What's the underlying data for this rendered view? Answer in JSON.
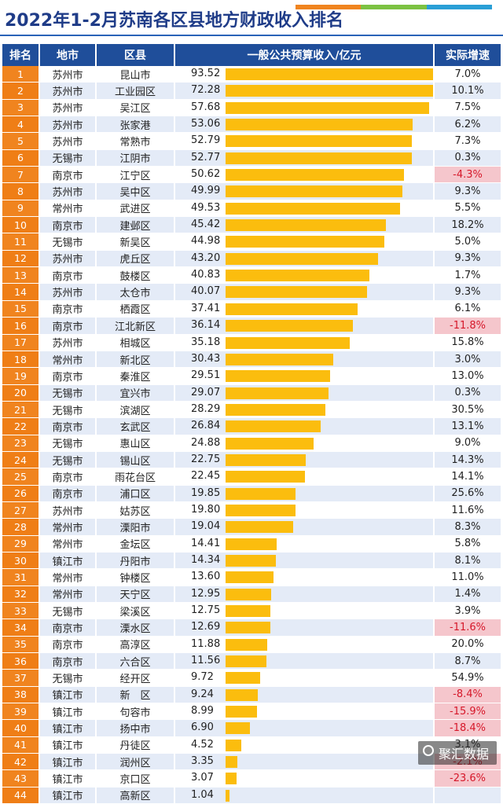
{
  "title": "2022年1-2月苏南各区县地方财政收入排名",
  "header": {
    "rank": "排名",
    "city": "地市",
    "district": "区县",
    "revenue": "一般公共预算收入/亿元",
    "growth": "实际增速"
  },
  "colors": {
    "accent_bars": [
      "#f0841f",
      "#7cc242",
      "#2a9fd6"
    ],
    "header_bg": "#1f4e9a",
    "rank_bg": "#f0841f",
    "bar": "#fbbd0e",
    "negative_bg": "#f5c6cc",
    "negative_text": "#d6182a"
  },
  "watermark": "聚汇数据",
  "chart_data": {
    "type": "bar",
    "title": "2022年1-2月苏南各区县地方财政收入排名",
    "value_label": "一般公共预算收入/亿元",
    "rows": [
      {
        "rank": "1",
        "city": "苏州市",
        "district": "昆山市",
        "value": "93.52",
        "growth": "7.0%"
      },
      {
        "rank": "2",
        "city": "苏州市",
        "district": "工业园区",
        "value": "72.28",
        "growth": "10.1%"
      },
      {
        "rank": "3",
        "city": "苏州市",
        "district": "吴江区",
        "value": "57.68",
        "growth": "7.5%"
      },
      {
        "rank": "4",
        "city": "苏州市",
        "district": "张家港",
        "value": "53.06",
        "growth": "6.2%"
      },
      {
        "rank": "5",
        "city": "苏州市",
        "district": "常熟市",
        "value": "52.79",
        "growth": "7.3%"
      },
      {
        "rank": "6",
        "city": "无锡市",
        "district": "江阴市",
        "value": "52.77",
        "growth": "0.3%"
      },
      {
        "rank": "7",
        "city": "南京市",
        "district": "江宁区",
        "value": "50.62",
        "growth": "-4.3%"
      },
      {
        "rank": "8",
        "city": "苏州市",
        "district": "吴中区",
        "value": "49.99",
        "growth": "9.3%"
      },
      {
        "rank": "9",
        "city": "常州市",
        "district": "武进区",
        "value": "49.53",
        "growth": "5.5%"
      },
      {
        "rank": "10",
        "city": "南京市",
        "district": "建邺区",
        "value": "45.42",
        "growth": "18.2%"
      },
      {
        "rank": "11",
        "city": "无锡市",
        "district": "新吴区",
        "value": "44.98",
        "growth": "5.0%"
      },
      {
        "rank": "12",
        "city": "苏州市",
        "district": "虎丘区",
        "value": "43.20",
        "growth": "9.3%"
      },
      {
        "rank": "13",
        "city": "南京市",
        "district": "鼓楼区",
        "value": "40.83",
        "growth": "1.7%"
      },
      {
        "rank": "14",
        "city": "苏州市",
        "district": "太仓市",
        "value": "40.07",
        "growth": "9.3%"
      },
      {
        "rank": "15",
        "city": "南京市",
        "district": "栖霞区",
        "value": "37.41",
        "growth": "6.1%"
      },
      {
        "rank": "16",
        "city": "南京市",
        "district": "江北新区",
        "value": "36.14",
        "growth": "-11.8%"
      },
      {
        "rank": "17",
        "city": "苏州市",
        "district": "相城区",
        "value": "35.18",
        "growth": "15.8%"
      },
      {
        "rank": "18",
        "city": "常州市",
        "district": "新北区",
        "value": "30.43",
        "growth": "3.0%"
      },
      {
        "rank": "19",
        "city": "南京市",
        "district": "秦淮区",
        "value": "29.51",
        "growth": "13.0%"
      },
      {
        "rank": "20",
        "city": "无锡市",
        "district": "宜兴市",
        "value": "29.07",
        "growth": "0.3%"
      },
      {
        "rank": "21",
        "city": "无锡市",
        "district": "滨湖区",
        "value": "28.29",
        "growth": "30.5%"
      },
      {
        "rank": "22",
        "city": "南京市",
        "district": "玄武区",
        "value": "26.84",
        "growth": "13.1%"
      },
      {
        "rank": "23",
        "city": "无锡市",
        "district": "惠山区",
        "value": "24.88",
        "growth": "9.0%"
      },
      {
        "rank": "24",
        "city": "无锡市",
        "district": "锡山区",
        "value": "22.75",
        "growth": "14.3%"
      },
      {
        "rank": "25",
        "city": "南京市",
        "district": "雨花台区",
        "value": "22.45",
        "growth": "14.1%"
      },
      {
        "rank": "26",
        "city": "南京市",
        "district": "浦口区",
        "value": "19.85",
        "growth": "25.6%"
      },
      {
        "rank": "27",
        "city": "苏州市",
        "district": "姑苏区",
        "value": "19.80",
        "growth": "11.6%"
      },
      {
        "rank": "28",
        "city": "常州市",
        "district": "溧阳市",
        "value": "19.04",
        "growth": "8.3%"
      },
      {
        "rank": "29",
        "city": "常州市",
        "district": "金坛区",
        "value": "14.41",
        "growth": "5.8%"
      },
      {
        "rank": "30",
        "city": "镇江市",
        "district": "丹阳市",
        "value": "14.34",
        "growth": "8.1%"
      },
      {
        "rank": "31",
        "city": "常州市",
        "district": "钟楼区",
        "value": "13.60",
        "growth": "11.0%"
      },
      {
        "rank": "32",
        "city": "常州市",
        "district": "天宁区",
        "value": "12.95",
        "growth": "1.4%"
      },
      {
        "rank": "33",
        "city": "无锡市",
        "district": "梁溪区",
        "value": "12.75",
        "growth": "3.9%"
      },
      {
        "rank": "34",
        "city": "南京市",
        "district": "溧水区",
        "value": "12.69",
        "growth": "-11.6%"
      },
      {
        "rank": "35",
        "city": "南京市",
        "district": "高淳区",
        "value": "11.88",
        "growth": "20.0%"
      },
      {
        "rank": "36",
        "city": "南京市",
        "district": "六合区",
        "value": "11.56",
        "growth": "8.7%"
      },
      {
        "rank": "37",
        "city": "无锡市",
        "district": "经开区",
        "value": "9.72",
        "growth": "54.9%"
      },
      {
        "rank": "38",
        "city": "镇江市",
        "district": "新　区",
        "value": "9.24",
        "growth": "-8.4%"
      },
      {
        "rank": "39",
        "city": "镇江市",
        "district": "句容市",
        "value": "8.99",
        "growth": "-15.9%"
      },
      {
        "rank": "40",
        "city": "镇江市",
        "district": "扬中市",
        "value": "6.90",
        "growth": "-18.4%"
      },
      {
        "rank": "41",
        "city": "镇江市",
        "district": "丹徒区",
        "value": "4.52",
        "growth": "3.1%"
      },
      {
        "rank": "42",
        "city": "镇江市",
        "district": "润州区",
        "value": "3.35",
        "growth": "-2.1%"
      },
      {
        "rank": "43",
        "city": "镇江市",
        "district": "京口区",
        "value": "3.07",
        "growth": "-23.6%"
      },
      {
        "rank": "44",
        "city": "镇江市",
        "district": "高新区",
        "value": "1.04",
        "growth": ""
      }
    ],
    "xlim": [
      0,
      93.52
    ]
  }
}
